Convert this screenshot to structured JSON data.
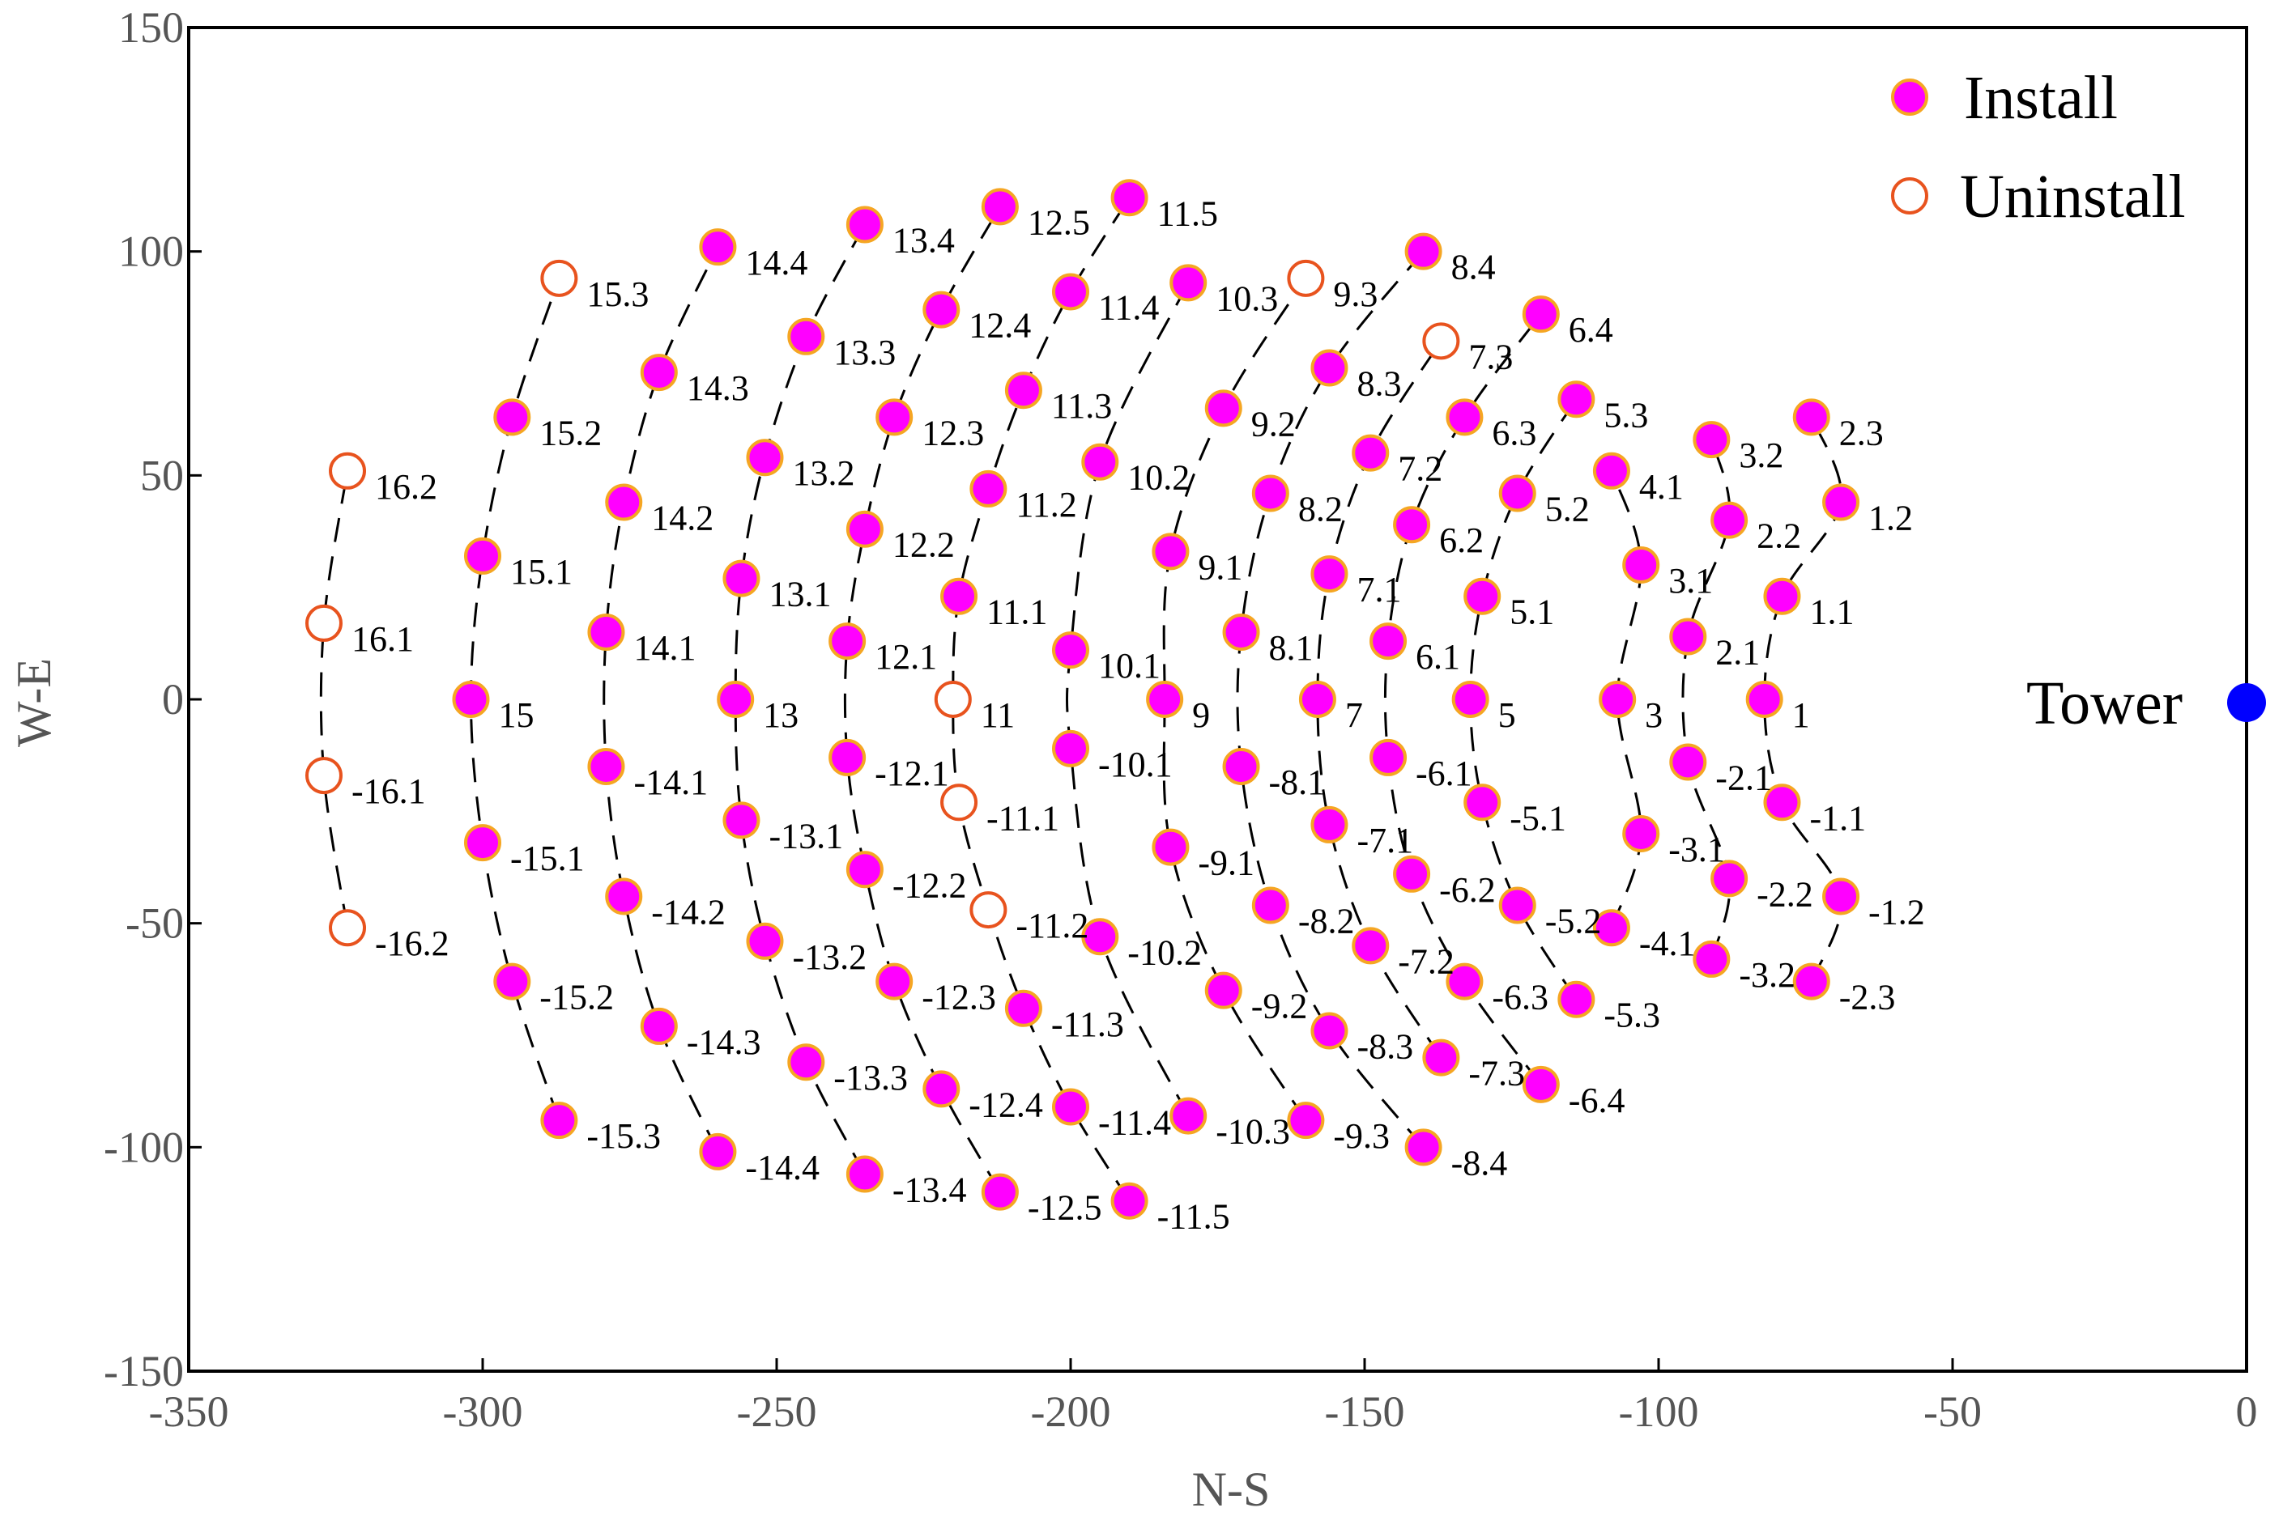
{
  "chart_data": {
    "type": "scatter",
    "xlabel": "N-S",
    "ylabel": "W-E",
    "xlim": [
      -350,
      0
    ],
    "ylim": [
      -150,
      150
    ],
    "xticks": [
      "-350",
      "-300",
      "-250",
      "-200",
      "-150",
      "-100",
      "-50",
      "0"
    ],
    "yticks": [
      "-150",
      "-100",
      "-50",
      "0",
      "50",
      "100",
      "150"
    ],
    "grid": false,
    "legend_position": "top-right",
    "legend": [
      "Install",
      "Uninstall"
    ],
    "colors": {
      "install_fill": "#ff00ff",
      "install_edge": "#f5a623",
      "uninstall_edge": "#e8531e",
      "tower": "#0000ff",
      "ring_line": "#000000"
    },
    "tower": {
      "label": "Tower",
      "x": 0,
      "y": 0
    },
    "series": [
      {
        "name": "Install",
        "points": [
          {
            "label": "1",
            "x": -82,
            "y": 0
          },
          {
            "label": "1.1",
            "x": -79,
            "y": 23
          },
          {
            "label": "-1.1",
            "x": -79,
            "y": -23
          },
          {
            "label": "1.2",
            "x": -69,
            "y": 44
          },
          {
            "label": "-1.2",
            "x": -69,
            "y": -44
          },
          {
            "label": "2.1",
            "x": -95,
            "y": 14
          },
          {
            "label": "-2.1",
            "x": -95,
            "y": -14
          },
          {
            "label": "2.2",
            "x": -88,
            "y": 40
          },
          {
            "label": "-2.2",
            "x": -88,
            "y": -40
          },
          {
            "label": "2.3",
            "x": -74,
            "y": 63
          },
          {
            "label": "-2.3",
            "x": -74,
            "y": -63
          },
          {
            "label": "3",
            "x": -107,
            "y": 0
          },
          {
            "label": "3.1",
            "x": -103,
            "y": 30
          },
          {
            "label": "-3.1",
            "x": -103,
            "y": -30
          },
          {
            "label": "3.2",
            "x": -91,
            "y": 58
          },
          {
            "label": "-3.2",
            "x": -91,
            "y": -58
          },
          {
            "label": "4.1",
            "x": -108,
            "y": 51
          },
          {
            "label": "-4.1",
            "x": -108,
            "y": -51
          },
          {
            "label": "5",
            "x": -132,
            "y": 0
          },
          {
            "label": "5.1",
            "x": -130,
            "y": 23
          },
          {
            "label": "-5.1",
            "x": -130,
            "y": -23
          },
          {
            "label": "5.2",
            "x": -124,
            "y": 46
          },
          {
            "label": "-5.2",
            "x": -124,
            "y": -46
          },
          {
            "label": "5.3",
            "x": -114,
            "y": 67
          },
          {
            "label": "-5.3",
            "x": -114,
            "y": -67
          },
          {
            "label": "6.1",
            "x": -146,
            "y": 13
          },
          {
            "label": "-6.1",
            "x": -146,
            "y": -13
          },
          {
            "label": "6.2",
            "x": -142,
            "y": 39
          },
          {
            "label": "-6.2",
            "x": -142,
            "y": -39
          },
          {
            "label": "6.3",
            "x": -133,
            "y": 63
          },
          {
            "label": "-6.3",
            "x": -133,
            "y": -63
          },
          {
            "label": "6.4",
            "x": -120,
            "y": 86
          },
          {
            "label": "-6.4",
            "x": -120,
            "y": -86
          },
          {
            "label": "7",
            "x": -158,
            "y": 0
          },
          {
            "label": "7.1",
            "x": -156,
            "y": 28
          },
          {
            "label": "-7.1",
            "x": -156,
            "y": -28
          },
          {
            "label": "7.2",
            "x": -149,
            "y": 55
          },
          {
            "label": "-7.2",
            "x": -149,
            "y": -55
          },
          {
            "label": "-7.3",
            "x": -137,
            "y": -80
          },
          {
            "label": "8.1",
            "x": -171,
            "y": 15
          },
          {
            "label": "-8.1",
            "x": -171,
            "y": -15
          },
          {
            "label": "8.2",
            "x": -166,
            "y": 46
          },
          {
            "label": "-8.2",
            "x": -166,
            "y": -46
          },
          {
            "label": "8.3",
            "x": -156,
            "y": 74
          },
          {
            "label": "-8.3",
            "x": -156,
            "y": -74
          },
          {
            "label": "8.4",
            "x": -140,
            "y": 100
          },
          {
            "label": "-8.4",
            "x": -140,
            "y": -100
          },
          {
            "label": "9",
            "x": -184,
            "y": 0
          },
          {
            "label": "9.1",
            "x": -183,
            "y": 33
          },
          {
            "label": "-9.1",
            "x": -183,
            "y": -33
          },
          {
            "label": "9.2",
            "x": -174,
            "y": 65
          },
          {
            "label": "-9.2",
            "x": -174,
            "y": -65
          },
          {
            "label": "-9.3",
            "x": -160,
            "y": -94
          },
          {
            "label": "10.1",
            "x": -200,
            "y": 11
          },
          {
            "label": "-10.1",
            "x": -200,
            "y": -11
          },
          {
            "label": "10.2",
            "x": -195,
            "y": 53
          },
          {
            "label": "-10.2",
            "x": -195,
            "y": -53
          },
          {
            "label": "10.3",
            "x": -180,
            "y": 93
          },
          {
            "label": "-10.3",
            "x": -180,
            "y": -93
          },
          {
            "label": "11.1",
            "x": -219,
            "y": 23
          },
          {
            "label": "11.2",
            "x": -214,
            "y": 47
          },
          {
            "label": "11.3",
            "x": -208,
            "y": 69
          },
          {
            "label": "-11.3",
            "x": -208,
            "y": -69
          },
          {
            "label": "11.4",
            "x": -200,
            "y": 91
          },
          {
            "label": "-11.4",
            "x": -200,
            "y": -91
          },
          {
            "label": "11.5",
            "x": -190,
            "y": 112
          },
          {
            "label": "-11.5",
            "x": -190,
            "y": -112
          },
          {
            "label": "12.1",
            "x": -238,
            "y": 13
          },
          {
            "label": "-12.1",
            "x": -238,
            "y": -13
          },
          {
            "label": "12.2",
            "x": -235,
            "y": 38
          },
          {
            "label": "-12.2",
            "x": -235,
            "y": -38
          },
          {
            "label": "12.3",
            "x": -230,
            "y": 63
          },
          {
            "label": "-12.3",
            "x": -230,
            "y": -63
          },
          {
            "label": "12.4",
            "x": -222,
            "y": 87
          },
          {
            "label": "-12.4",
            "x": -222,
            "y": -87
          },
          {
            "label": "12.5",
            "x": -212,
            "y": 110
          },
          {
            "label": "-12.5",
            "x": -212,
            "y": -110
          },
          {
            "label": "13",
            "x": -257,
            "y": 0
          },
          {
            "label": "13.1",
            "x": -256,
            "y": 27
          },
          {
            "label": "-13.1",
            "x": -256,
            "y": -27
          },
          {
            "label": "13.2",
            "x": -252,
            "y": 54
          },
          {
            "label": "-13.2",
            "x": -252,
            "y": -54
          },
          {
            "label": "13.3",
            "x": -245,
            "y": 81
          },
          {
            "label": "-13.3",
            "x": -245,
            "y": -81
          },
          {
            "label": "13.4",
            "x": -235,
            "y": 106
          },
          {
            "label": "-13.4",
            "x": -235,
            "y": -106
          },
          {
            "label": "14.1",
            "x": -279,
            "y": 15
          },
          {
            "label": "-14.1",
            "x": -279,
            "y": -15
          },
          {
            "label": "14.2",
            "x": -276,
            "y": 44
          },
          {
            "label": "-14.2",
            "x": -276,
            "y": -44
          },
          {
            "label": "14.3",
            "x": -270,
            "y": 73
          },
          {
            "label": "-14.3",
            "x": -270,
            "y": -73
          },
          {
            "label": "14.4",
            "x": -260,
            "y": 101
          },
          {
            "label": "-14.4",
            "x": -260,
            "y": -101
          },
          {
            "label": "15",
            "x": -302,
            "y": 0
          },
          {
            "label": "15.1",
            "x": -300,
            "y": 32
          },
          {
            "label": "-15.1",
            "x": -300,
            "y": -32
          },
          {
            "label": "15.2",
            "x": -295,
            "y": 63
          },
          {
            "label": "-15.2",
            "x": -295,
            "y": -63
          },
          {
            "label": "-15.3",
            "x": -287,
            "y": -94
          }
        ]
      },
      {
        "name": "Uninstall",
        "points": [
          {
            "label": "7.3",
            "x": -137,
            "y": 80
          },
          {
            "label": "9.3",
            "x": -160,
            "y": 94
          },
          {
            "label": "11",
            "x": -220,
            "y": 0
          },
          {
            "label": "-11.1",
            "x": -219,
            "y": -23
          },
          {
            "label": "-11.2",
            "x": -214,
            "y": -47
          },
          {
            "label": "15.3",
            "x": -287,
            "y": 94
          },
          {
            "label": "16.1",
            "x": -327,
            "y": 17
          },
          {
            "label": "-16.1",
            "x": -327,
            "y": -17
          },
          {
            "label": "16.2",
            "x": -323,
            "y": 51
          },
          {
            "label": "-16.2",
            "x": -323,
            "y": -51
          }
        ]
      }
    ],
    "rings": [
      [
        "-2.3",
        "-1.2",
        "-1.1",
        "1",
        "1.1",
        "1.2",
        "2.3"
      ],
      [
        "-3.2",
        "-2.2",
        "-2.1",
        "2.1",
        "2.2",
        "3.2"
      ],
      [
        "-4.1",
        "-3.1",
        "3",
        "3.1",
        "4.1"
      ],
      [
        "-5.3",
        "-5.2",
        "-5.1",
        "5",
        "5.1",
        "5.2",
        "5.3"
      ],
      [
        "-6.4",
        "-6.3",
        "-6.2",
        "-6.1",
        "6.1",
        "6.2",
        "6.3",
        "6.4"
      ],
      [
        "-7.3",
        "-7.2",
        "-7.1",
        "7",
        "7.1",
        "7.2",
        "7.3"
      ],
      [
        "-8.4",
        "-8.3",
        "-8.2",
        "-8.1",
        "8.1",
        "8.2",
        "8.3",
        "8.4"
      ],
      [
        "-9.3",
        "-9.2",
        "-9.1",
        "9",
        "9.1",
        "9.2",
        "9.3"
      ],
      [
        "-10.3",
        "-10.2",
        "-10.1",
        "10.1",
        "10.2",
        "10.3"
      ],
      [
        "-11.5",
        "-11.4",
        "-11.3",
        "-11.2",
        "-11.1",
        "11",
        "11.1",
        "11.2",
        "11.3",
        "11.4",
        "11.5"
      ],
      [
        "-12.5",
        "-12.4",
        "-12.3",
        "-12.2",
        "-12.1",
        "12.1",
        "12.2",
        "12.3",
        "12.4",
        "12.5"
      ],
      [
        "-13.4",
        "-13.3",
        "-13.2",
        "-13.1",
        "13",
        "13.1",
        "13.2",
        "13.3",
        "13.4"
      ],
      [
        "-14.4",
        "-14.3",
        "-14.2",
        "-14.1",
        "14.1",
        "14.2",
        "14.3",
        "14.4"
      ],
      [
        "-15.3",
        "-15.2",
        "-15.1",
        "15",
        "15.1",
        "15.2",
        "15.3"
      ],
      [
        "-16.2",
        "-16.1",
        "16.1",
        "16.2"
      ]
    ]
  }
}
